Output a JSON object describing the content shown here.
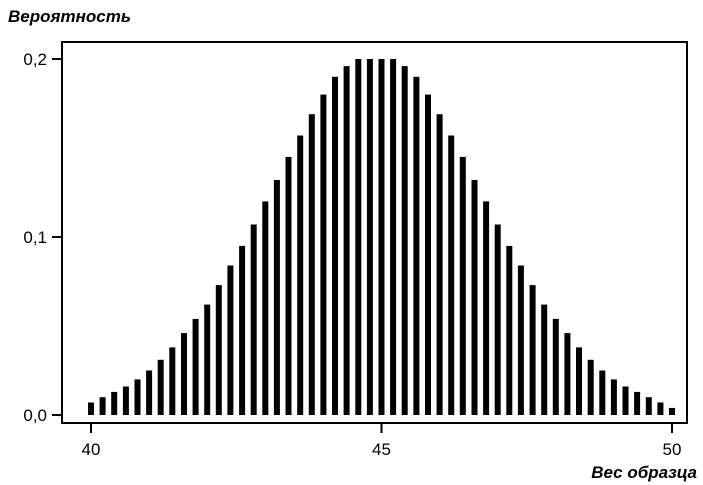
{
  "chart_data": {
    "type": "bar",
    "title": "",
    "ylabel": "Вероятность",
    "xlabel": "Вес образца",
    "xlim": [
      40,
      50
    ],
    "ylim": [
      0,
      0.2
    ],
    "xticks": [
      40,
      45,
      50
    ],
    "xtick_labels": [
      "40",
      "45",
      "50"
    ],
    "yticks": [
      0,
      0.1,
      0.2
    ],
    "ytick_labels": [
      "0,0",
      "0,1",
      "0,2"
    ],
    "bar_color": "#000000",
    "grid": false,
    "x": [
      40.0,
      40.2,
      40.4,
      40.6,
      40.8,
      41.0,
      41.2,
      41.4,
      41.6,
      41.8,
      42.0,
      42.2,
      42.4,
      42.6,
      42.8,
      43.0,
      43.2,
      43.4,
      43.6,
      43.8,
      44.0,
      44.2,
      44.4,
      44.6,
      44.8,
      45.0,
      45.2,
      45.4,
      45.6,
      45.8,
      46.0,
      46.2,
      46.4,
      46.6,
      46.8,
      47.0,
      47.2,
      47.4,
      47.6,
      47.8,
      48.0,
      48.2,
      48.4,
      48.6,
      48.8,
      49.0,
      49.2,
      49.4,
      49.6,
      49.8,
      50.0
    ],
    "values": [
      0.007,
      0.01,
      0.013,
      0.016,
      0.02,
      0.025,
      0.031,
      0.038,
      0.046,
      0.054,
      0.062,
      0.073,
      0.084,
      0.095,
      0.107,
      0.12,
      0.132,
      0.145,
      0.157,
      0.169,
      0.18,
      0.19,
      0.196,
      0.2,
      0.2,
      0.2,
      0.2,
      0.196,
      0.19,
      0.18,
      0.169,
      0.157,
      0.145,
      0.132,
      0.12,
      0.107,
      0.095,
      0.084,
      0.073,
      0.062,
      0.054,
      0.046,
      0.038,
      0.031,
      0.025,
      0.02,
      0.016,
      0.013,
      0.01,
      0.007,
      0.004
    ]
  }
}
